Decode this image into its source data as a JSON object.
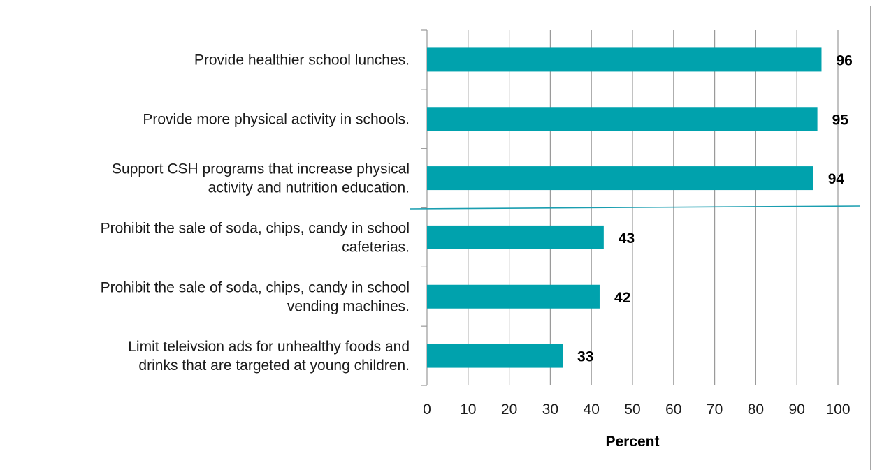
{
  "chart_data": {
    "type": "bar",
    "orientation": "horizontal",
    "categories": [
      [
        "Provide healthier school lunches."
      ],
      [
        "Provide more physical activity in schools."
      ],
      [
        "Support CSH programs that increase physical",
        "activity and nutrition education."
      ],
      [
        "Prohibit the sale of soda, chips, candy in school",
        "cafeterias."
      ],
      [
        "Prohibit the sale of soda, chips, candy in school",
        "vending machines."
      ],
      [
        "Limit teleivsion ads for unhealthy foods and",
        "drinks that are targeted at young children."
      ]
    ],
    "values": [
      96,
      95,
      94,
      43,
      42,
      33
    ],
    "data_labels": [
      "96",
      "95",
      "94",
      "43",
      "42",
      "33"
    ],
    "xlabel": "Percent",
    "xlim": [
      0,
      100
    ],
    "xticks": [
      "0",
      "10",
      "20",
      "30",
      "40",
      "50",
      "60",
      "70",
      "80",
      "90",
      "100"
    ],
    "grid": true,
    "bar_color": "#00a2ad",
    "separator_color": "#1a9eb0"
  }
}
